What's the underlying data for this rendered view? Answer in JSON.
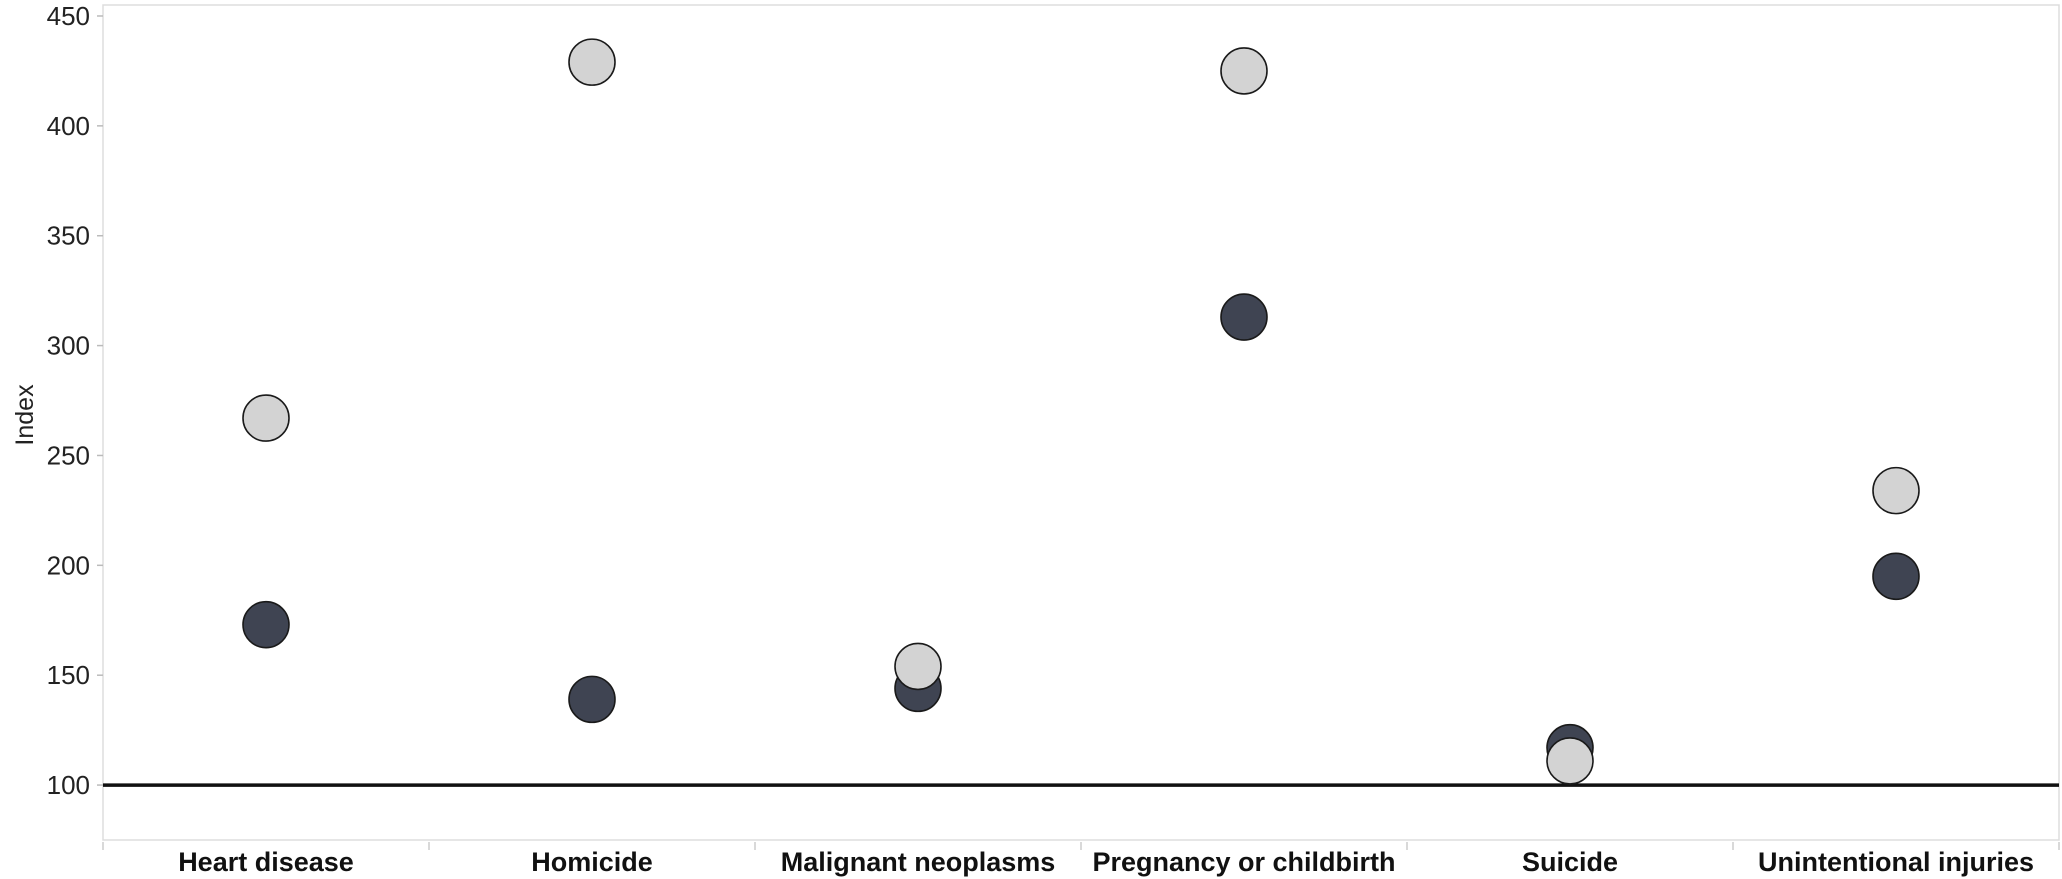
{
  "chart_data": {
    "type": "scatter",
    "title": "",
    "xlabel": "",
    "ylabel": "Index",
    "categories": [
      "Heart disease",
      "Homicide",
      "Malignant neoplasms",
      "Pregnancy or childbirth",
      "Suicide",
      "Unintentional injuries"
    ],
    "ylim": [
      75,
      455
    ],
    "yticks": [
      100,
      150,
      200,
      250,
      300,
      350,
      400,
      450
    ],
    "reference_line": 100,
    "grid": false,
    "legend": "none",
    "series": [
      {
        "color": "#d3d3d3",
        "values": [
          267,
          429,
          154,
          425,
          111,
          234
        ]
      },
      {
        "color": "#3f4452",
        "values": [
          173,
          139,
          144,
          313,
          117,
          195
        ]
      }
    ]
  }
}
